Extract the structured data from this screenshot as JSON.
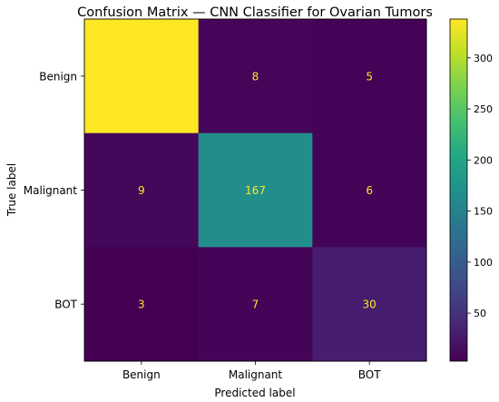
{
  "chart_data": {
    "type": "heatmap",
    "title": "Confusion Matrix — CNN Classifier for Ovarian Tumors",
    "xlabel": "Predicted label",
    "ylabel": "True label",
    "x_categories": [
      "Benign",
      "Malignant",
      "BOT"
    ],
    "y_categories": [
      "Benign",
      "Malignant",
      "BOT"
    ],
    "values": [
      [
        338,
        8,
        5
      ],
      [
        9,
        167,
        6
      ],
      [
        3,
        7,
        30
      ]
    ],
    "colormap": "viridis",
    "colorbar": {
      "min": 3,
      "max": 338,
      "ticks": [
        "50",
        "100",
        "150",
        "200",
        "250",
        "300"
      ]
    },
    "annotation_color": "#fde725",
    "grid": false
  }
}
